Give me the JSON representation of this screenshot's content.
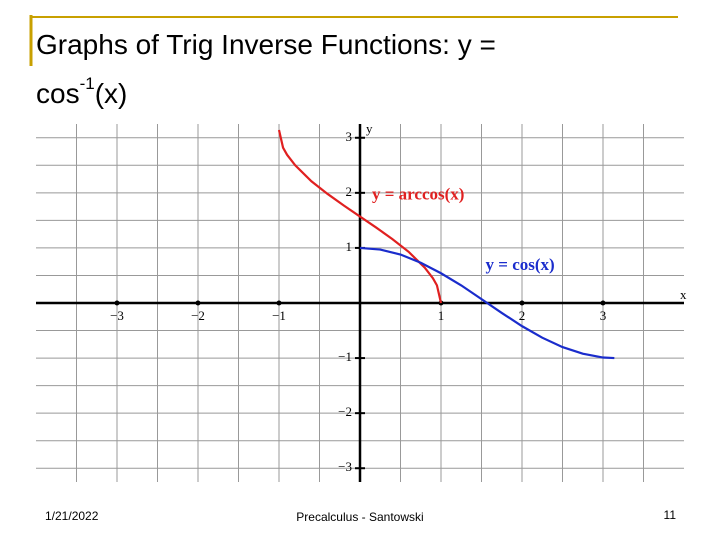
{
  "slide": {
    "title": {
      "text": "Graphs of Trig Inverse Functions: y = cos",
      "superscript": "-1",
      "after": "(x)"
    },
    "footer": {
      "date": "1/21/2022",
      "center": "Precalculus - Santowski",
      "page": "11"
    }
  },
  "chart_data": {
    "type": "line",
    "x_label": "x",
    "y_label": "y",
    "xlim": [
      -4,
      4
    ],
    "ylim": [
      -3.25,
      3.25
    ],
    "xticks": [
      {
        "value": -3,
        "label": "−3"
      },
      {
        "value": -2,
        "label": "−2"
      },
      {
        "value": -1,
        "label": "−1"
      },
      1,
      2,
      3
    ],
    "yticks": [
      3,
      2,
      1,
      {
        "value": -1,
        "label": "−1"
      },
      {
        "value": -2,
        "label": "−2"
      },
      {
        "value": -3,
        "label": "−3"
      }
    ],
    "grid": true,
    "xgrid": [
      -3.5,
      -3,
      -2.5,
      -2,
      -1.5,
      -1,
      -0.5,
      0.5,
      1,
      1.5,
      2,
      2.5,
      3,
      3.5
    ],
    "ygrid": [
      3,
      2.5,
      2,
      1.5,
      1,
      0.5,
      -0.5,
      -1,
      -1.5,
      -2,
      -2.5,
      -3
    ],
    "series": [
      {
        "name": "y = arccos(x)",
        "color": "#e02020",
        "x": [
          -1,
          -0.95,
          -0.9,
          -0.8,
          -0.6,
          -0.4,
          -0.2,
          0,
          0.2,
          0.4,
          0.6,
          0.8,
          0.9,
          0.95,
          1
        ],
        "values": [
          3.14,
          2.82,
          2.69,
          2.5,
          2.21,
          1.98,
          1.77,
          1.57,
          1.37,
          1.16,
          0.93,
          0.64,
          0.45,
          0.32,
          0
        ]
      },
      {
        "name": "y = cos(x)",
        "color": "#1a2ccc",
        "x": [
          0,
          0.25,
          0.5,
          0.75,
          1,
          1.25,
          1.5,
          1.75,
          2,
          2.25,
          2.5,
          2.75,
          3,
          3.14
        ],
        "values": [
          1,
          0.97,
          0.88,
          0.73,
          0.54,
          0.32,
          0.07,
          -0.18,
          -0.42,
          -0.63,
          -0.8,
          -0.92,
          -0.99,
          -1
        ]
      }
    ]
  }
}
